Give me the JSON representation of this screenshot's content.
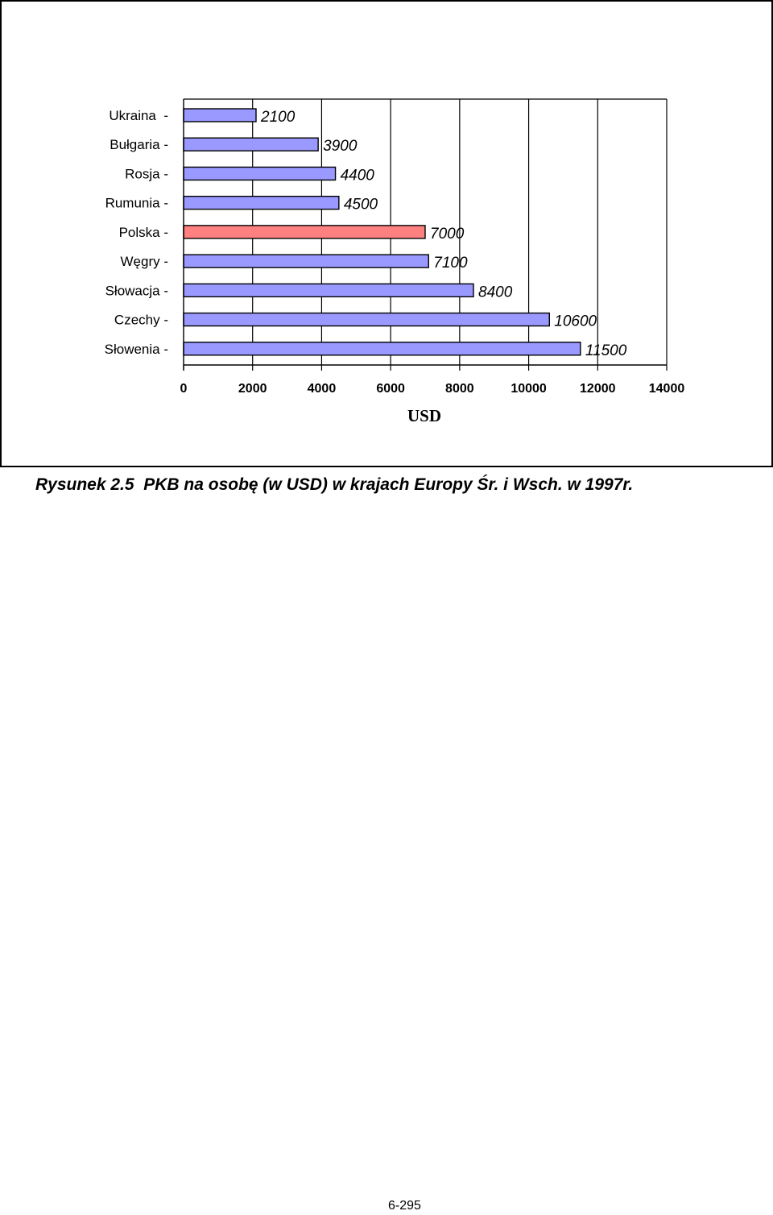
{
  "chart_data": {
    "type": "bar",
    "orientation": "horizontal",
    "categories": [
      "Ukraina",
      "Bułgaria",
      "Rosja",
      "Rumunia",
      "Polska",
      "Węgry",
      "Słowacja",
      "Czechy",
      "Słowenia"
    ],
    "category_labels": [
      "Ukraina  -",
      "Bułgaria -",
      "Rosja -",
      "Rumunia -",
      "Polska -",
      "Węgry -",
      "Słowacja -",
      "Czechy -",
      "Słowenia -"
    ],
    "values": [
      2100,
      3900,
      4400,
      4500,
      7000,
      7100,
      8400,
      10600,
      11500
    ],
    "highlight_category": "Polska",
    "xlabel": "USD",
    "ylabel": "",
    "xlim": [
      0,
      14000
    ],
    "xticks": [
      0,
      2000,
      4000,
      6000,
      8000,
      10000,
      12000,
      14000
    ],
    "grid": "vertical",
    "legend": "none"
  },
  "colors": {
    "bar": "#9999ff",
    "highlight_bar": "#ff8080",
    "bar_outline": "#000000"
  },
  "caption": "Rysunek 2.5  PKB na osobę (w USD) w krajach Europy Śr. i Wsch. w 1997r.",
  "page_number": "6-295"
}
